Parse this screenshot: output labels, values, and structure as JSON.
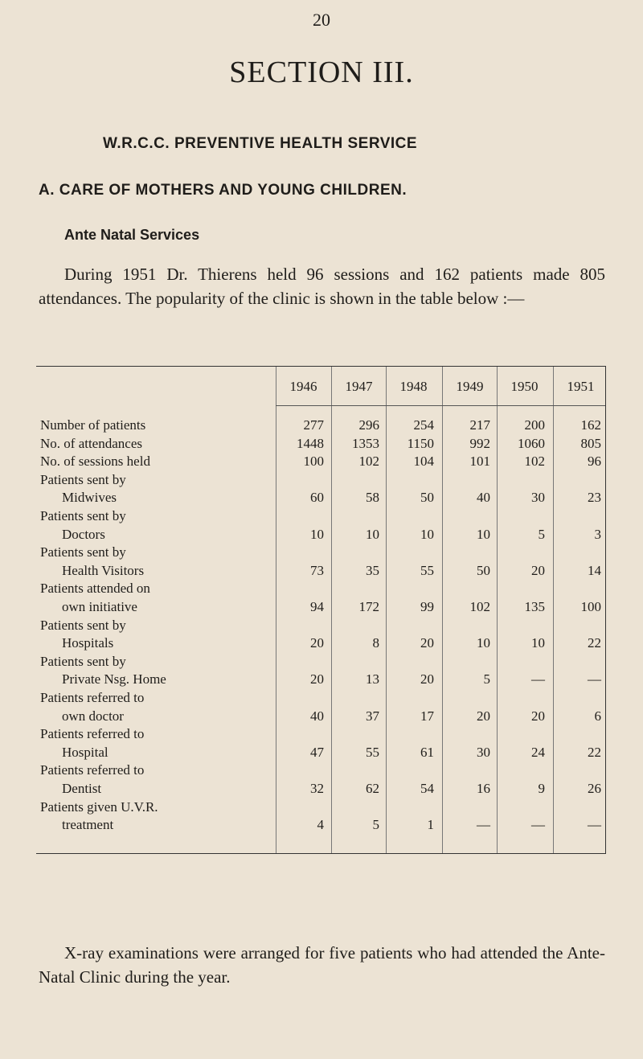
{
  "page_number": "20",
  "section_title": "SECTION III.",
  "heading": "W.R.C.C. PREVENTIVE HEALTH SERVICE",
  "subheading": "A. CARE OF MOTHERS AND YOUNG CHILDREN.",
  "subsection": "Ante Natal Services",
  "intro": "During 1951 Dr. Thierens held 96 sessions and 162 patients made 805 attendances. The popularity of the clinic is shown in the table below :—",
  "table": {
    "years": [
      "1946",
      "1947",
      "1948",
      "1949",
      "1950",
      "1951"
    ],
    "rows": [
      {
        "label": [
          "Number of patients"
        ],
        "values": [
          "277",
          "296",
          "254",
          "217",
          "200",
          "162"
        ]
      },
      {
        "label": [
          "No. of attendances"
        ],
        "values": [
          "1448",
          "1353",
          "1150",
          "992",
          "1060",
          "805"
        ]
      },
      {
        "label": [
          "No. of sessions held"
        ],
        "values": [
          "100",
          "102",
          "104",
          "101",
          "102",
          "96"
        ]
      },
      {
        "label": [
          "Patients sent by",
          "Midwives"
        ],
        "values": [
          "60",
          "58",
          "50",
          "40",
          "30",
          "23"
        ]
      },
      {
        "label": [
          "Patients sent by",
          "Doctors"
        ],
        "values": [
          "10",
          "10",
          "10",
          "10",
          "5",
          "3"
        ]
      },
      {
        "label": [
          "Patients sent by",
          "Health Visitors"
        ],
        "values": [
          "73",
          "35",
          "55",
          "50",
          "20",
          "14"
        ]
      },
      {
        "label": [
          "Patients attended on",
          "own initiative"
        ],
        "values": [
          "94",
          "172",
          "99",
          "102",
          "135",
          "100"
        ]
      },
      {
        "label": [
          "Patients sent by",
          "Hospitals"
        ],
        "values": [
          "20",
          "8",
          "20",
          "10",
          "10",
          "22"
        ]
      },
      {
        "label": [
          "Patients sent by",
          "Private Nsg. Home"
        ],
        "values": [
          "20",
          "13",
          "20",
          "5",
          "—",
          "—"
        ]
      },
      {
        "label": [
          "Patients referred to",
          "own doctor"
        ],
        "values": [
          "40",
          "37",
          "17",
          "20",
          "20",
          "6"
        ]
      },
      {
        "label": [
          "Patients referred to",
          "Hospital"
        ],
        "values": [
          "47",
          "55",
          "61",
          "30",
          "24",
          "22"
        ]
      },
      {
        "label": [
          "Patients referred to",
          "Dentist"
        ],
        "values": [
          "32",
          "62",
          "54",
          "16",
          "9",
          "26"
        ]
      },
      {
        "label": [
          "Patients given U.V.R.",
          "treatment"
        ],
        "values": [
          "4",
          "5",
          "1",
          "—",
          "—",
          "—"
        ]
      }
    ]
  },
  "closing": "X-ray examinations were arranged for five patients who had attended the Ante-Natal Clinic during the year."
}
